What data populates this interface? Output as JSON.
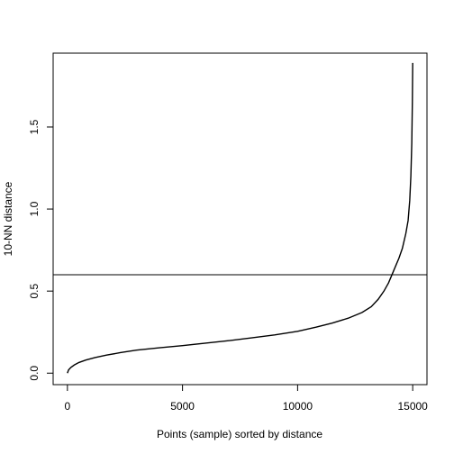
{
  "chart_data": {
    "type": "line",
    "title": "",
    "xlabel": "Points (sample) sorted by distance",
    "ylabel": "10-NN distance",
    "xlim": [
      -620,
      15620
    ],
    "ylim": [
      -0.07,
      1.95
    ],
    "xticks": [
      0,
      5000,
      10000,
      15000
    ],
    "xtick_labels": [
      "0",
      "5000",
      "10000",
      "15000"
    ],
    "yticks": [
      0.0,
      0.5,
      1.0,
      1.5
    ],
    "ytick_labels": [
      "0.0",
      "0.5",
      "1.0",
      "1.5"
    ],
    "grid": false,
    "legend": "none",
    "series": [
      {
        "x": [
          0,
          50,
          150,
          300,
          500,
          800,
          1200,
          1700,
          2300,
          3000,
          4000,
          5000,
          6000,
          7000,
          8000,
          9000,
          10000,
          10800,
          11500,
          12200,
          12800,
          13200,
          13500,
          13750,
          13950,
          14100,
          14250,
          14400,
          14550,
          14700,
          14800,
          14870,
          14920,
          14960,
          14985,
          15000
        ],
        "y": [
          0.0,
          0.02,
          0.035,
          0.05,
          0.065,
          0.08,
          0.095,
          0.11,
          0.125,
          0.14,
          0.155,
          0.168,
          0.183,
          0.198,
          0.215,
          0.233,
          0.255,
          0.28,
          0.305,
          0.335,
          0.37,
          0.405,
          0.45,
          0.5,
          0.55,
          0.6,
          0.65,
          0.7,
          0.76,
          0.85,
          0.93,
          1.05,
          1.2,
          1.4,
          1.65,
          1.89
        ]
      }
    ],
    "hlines": [
      0.6
    ],
    "line_color": "#000000"
  }
}
